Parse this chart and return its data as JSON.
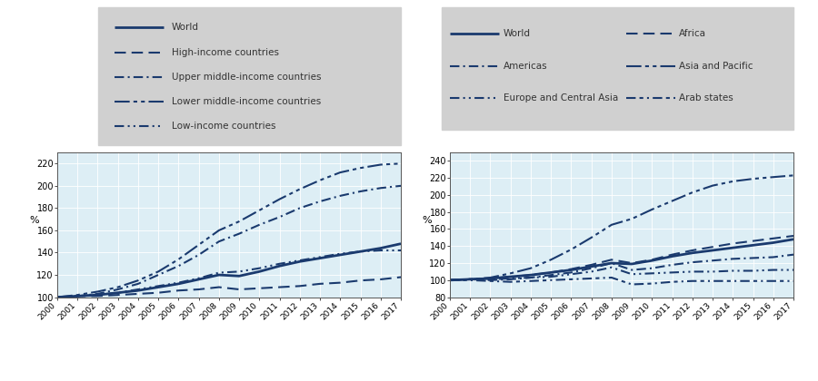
{
  "years": [
    2000,
    2001,
    2002,
    2003,
    2004,
    2005,
    2006,
    2007,
    2008,
    2009,
    2010,
    2011,
    2012,
    2013,
    2014,
    2015,
    2016,
    2017
  ],
  "chart1": {
    "World": [
      100,
      101,
      102,
      104,
      106,
      109,
      112,
      116,
      120,
      119,
      123,
      128,
      132,
      135,
      138,
      141,
      144,
      148
    ],
    "High_income": [
      100,
      101,
      101,
      102,
      103,
      104,
      106,
      107,
      109,
      107,
      108,
      109,
      110,
      112,
      113,
      115,
      116,
      118
    ],
    "Upper_middle": [
      100,
      101,
      103,
      107,
      112,
      120,
      128,
      138,
      150,
      157,
      165,
      172,
      180,
      186,
      191,
      195,
      198,
      200
    ],
    "Lower_middle": [
      100,
      102,
      105,
      109,
      115,
      123,
      134,
      147,
      160,
      168,
      178,
      188,
      197,
      205,
      212,
      216,
      219,
      220
    ],
    "Low_income": [
      100,
      101,
      102,
      104,
      107,
      110,
      113,
      117,
      122,
      123,
      126,
      130,
      133,
      136,
      139,
      141,
      142,
      142
    ]
  },
  "chart1_legend": [
    "World",
    "High-income countries",
    "Upper middle-income countries",
    "Lower middle-income countries",
    "Low-income countries"
  ],
  "chart1_keys": [
    "World",
    "High_income",
    "Upper_middle",
    "Lower_middle",
    "Low_income"
  ],
  "chart1_dashes": [
    [
      1,
      0
    ],
    [
      6,
      3
    ],
    [
      5,
      2,
      1,
      2
    ],
    [
      8,
      2,
      2,
      2,
      2,
      2
    ],
    [
      5,
      2,
      1,
      2,
      1,
      2
    ]
  ],
  "chart1_lw": [
    2.0,
    1.5,
    1.5,
    1.5,
    1.5
  ],
  "chart2": {
    "World": [
      100,
      101,
      102,
      104,
      106,
      109,
      112,
      116,
      120,
      119,
      123,
      128,
      132,
      135,
      138,
      141,
      144,
      148
    ],
    "Africa": [
      100,
      101,
      102,
      104,
      106,
      109,
      113,
      118,
      124,
      120,
      124,
      130,
      135,
      139,
      143,
      146,
      149,
      152
    ],
    "Americas": [
      100,
      101,
      100,
      101,
      103,
      106,
      109,
      114,
      120,
      112,
      114,
      118,
      121,
      123,
      125,
      126,
      127,
      130
    ],
    "Asia_Pacific": [
      100,
      101,
      103,
      108,
      114,
      124,
      136,
      150,
      165,
      172,
      183,
      193,
      203,
      211,
      216,
      219,
      221,
      223
    ],
    "Europe_Central_Asia": [
      100,
      101,
      101,
      102,
      103,
      104,
      107,
      110,
      115,
      107,
      108,
      109,
      110,
      110,
      111,
      111,
      112,
      112
    ],
    "Arab_states": [
      100,
      100,
      99,
      98,
      99,
      100,
      101,
      102,
      103,
      95,
      96,
      98,
      99,
      99,
      99,
      99,
      99,
      99
    ]
  },
  "chart2_legend_col1": [
    "World",
    "Americas",
    "Europe and Central Asia"
  ],
  "chart2_legend_col2": [
    "Africa",
    "Asia and Pacific",
    "Arab states"
  ],
  "chart2_keys": [
    "World",
    "Americas",
    "Europe_Central_Asia",
    "Africa",
    "Asia_Pacific",
    "Arab_states"
  ],
  "chart2_dashes": [
    [
      1,
      0
    ],
    [
      5,
      2,
      1,
      2
    ],
    [
      5,
      2,
      1,
      2,
      1,
      2
    ],
    [
      6,
      3
    ],
    [
      8,
      2,
      2,
      2,
      2,
      2
    ],
    [
      5,
      2,
      2,
      2,
      1,
      2
    ]
  ],
  "chart2_lw": [
    2.0,
    1.5,
    1.5,
    1.5,
    1.5,
    1.5
  ],
  "line_color": "#1a3a6e",
  "bg_color": "#ddeef5",
  "legend_bg": "#d0d0d0",
  "chart1_ylim": [
    100,
    230
  ],
  "chart1_yticks": [
    100,
    120,
    140,
    160,
    180,
    200,
    220
  ],
  "chart2_ylim": [
    80,
    250
  ],
  "chart2_yticks": [
    80,
    100,
    120,
    140,
    160,
    180,
    200,
    220,
    240
  ]
}
